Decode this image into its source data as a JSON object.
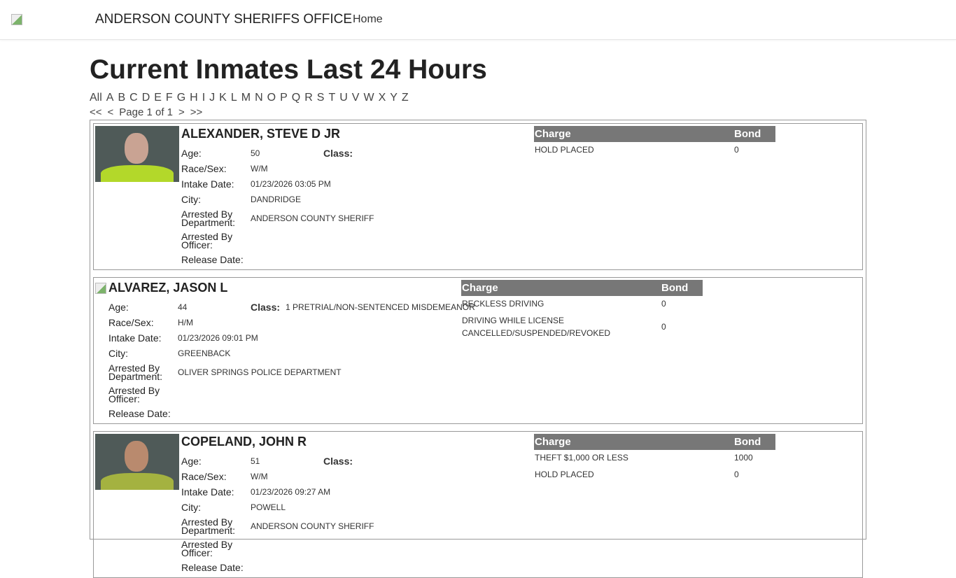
{
  "nav": {
    "brand": "ANDERSON COUNTY SHERIFFS OFFICE",
    "home": "Home"
  },
  "page": {
    "title": "Current Inmates Last 24 Hours"
  },
  "letters": [
    "All",
    "A",
    "B",
    "C",
    "D",
    "E",
    "F",
    "G",
    "H",
    "I",
    "J",
    "K",
    "L",
    "M",
    "N",
    "O",
    "P",
    "Q",
    "R",
    "S",
    "T",
    "U",
    "V",
    "W",
    "X",
    "Y",
    "Z"
  ],
  "pager": {
    "first": "<<",
    "prev": "<",
    "label": "Page 1 of 1",
    "next": ">",
    "last": ">>"
  },
  "labels": {
    "age": "Age:",
    "class": "Class:",
    "race": "Race/Sex:",
    "intake": "Intake Date:",
    "city": "City:",
    "dept": "Arrested By Department:",
    "officer": "Arrested By Officer:",
    "release": "Release Date:",
    "charge": "Charge",
    "bond": "Bond"
  },
  "inmates": [
    {
      "name": "ALEXANDER, STEVE D JR",
      "age": "50",
      "class": "",
      "race": "W/M",
      "intake": "01/23/2026 03:05 PM",
      "city": "DANDRIDGE",
      "dept": "ANDERSON COUNTY SHERIFF",
      "officer": "",
      "release": "",
      "photo": true,
      "charges": [
        {
          "charge": "HOLD PLACED",
          "bond": "0"
        }
      ]
    },
    {
      "name": "ALVAREZ, JASON L",
      "age": "44",
      "class": "1 PRETRIAL/NON-SENTENCED MISDEMEANOR",
      "race": "H/M",
      "intake": "01/23/2026 09:01 PM",
      "city": "GREENBACK",
      "dept": "OLIVER SPRINGS POLICE DEPARTMENT",
      "officer": "",
      "release": "",
      "photo": false,
      "charges": [
        {
          "charge": "RECKLESS DRIVING",
          "bond": "0"
        },
        {
          "charge": "DRIVING WHILE LICENSE CANCELLED/SUSPENDED/REVOKED",
          "bond": "0"
        }
      ]
    },
    {
      "name": "COPELAND, JOHN R",
      "age": "51",
      "class": "",
      "race": "W/M",
      "intake": "01/23/2026 09:27 AM",
      "city": "POWELL",
      "dept": "ANDERSON COUNTY SHERIFF",
      "officer": "",
      "release": "",
      "photo": true,
      "charges": [
        {
          "charge": "THEFT $1,000 OR LESS",
          "bond": "1000"
        },
        {
          "charge": "HOLD PLACED",
          "bond": "0"
        }
      ]
    }
  ]
}
